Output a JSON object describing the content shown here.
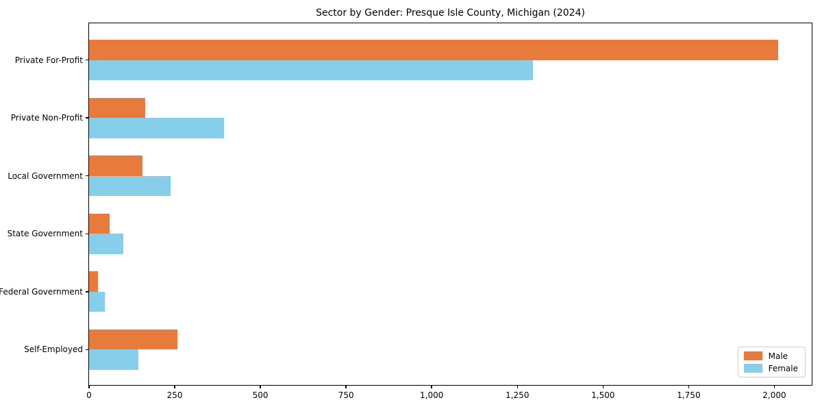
{
  "chart_data": {
    "type": "bar",
    "orientation": "horizontal",
    "title": "Sector by Gender: Presque Isle County, Michigan (2024)",
    "categories": [
      "Private For-Profit",
      "Private Non-Profit",
      "Local Government",
      "State Government",
      "Federal Government",
      "Self-Employed"
    ],
    "series": [
      {
        "name": "Male",
        "color": "#e87a3c",
        "values": [
          2012,
          163,
          155,
          60,
          26,
          257
        ]
      },
      {
        "name": "Female",
        "color": "#87ceeb",
        "values": [
          1296,
          394,
          238,
          100,
          45,
          144
        ]
      }
    ],
    "xlabel": "",
    "ylabel": "",
    "xlim": [
      0,
      2113
    ],
    "x_ticks": [
      0,
      250,
      500,
      750,
      1000,
      1250,
      1500,
      1750,
      2000
    ],
    "x_tick_labels": [
      "0",
      "250",
      "500",
      "750",
      "1,000",
      "1,250",
      "1,500",
      "1,750",
      "2,000"
    ],
    "bar_height_frac": 0.35,
    "axis_margin_frac": 0.05,
    "grid": false,
    "legend_position": "lower right",
    "frame_color": "#000000",
    "background_color": "#ffffff"
  }
}
